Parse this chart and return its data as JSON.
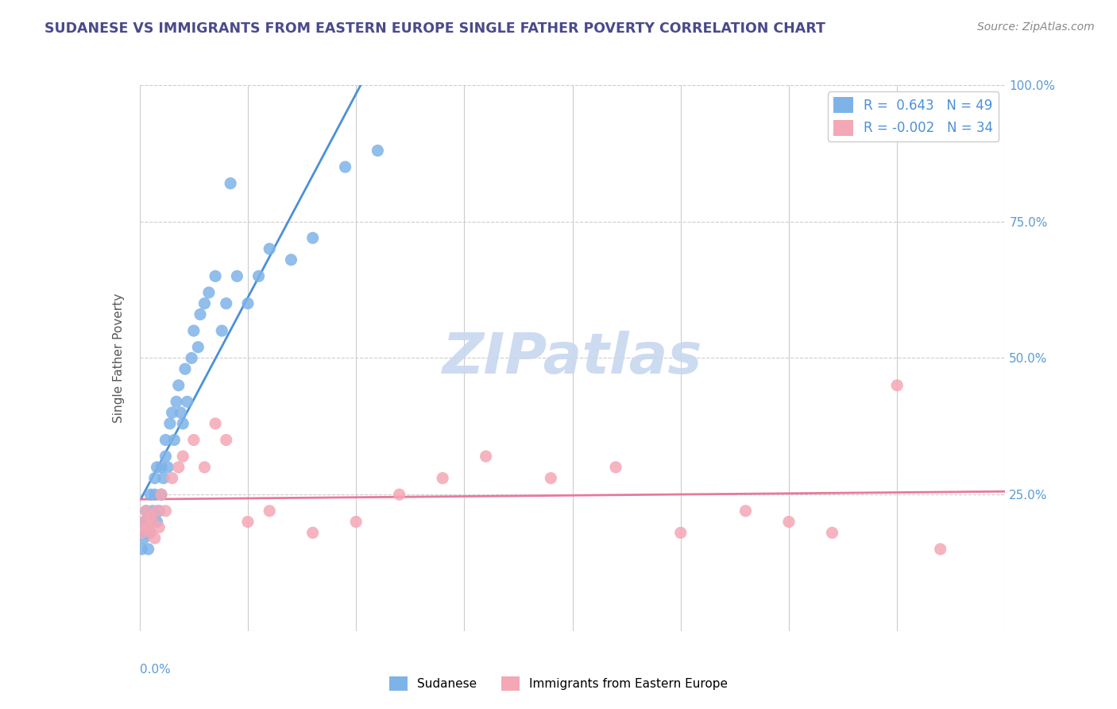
{
  "title": "SUDANESE VS IMMIGRANTS FROM EASTERN EUROPE SINGLE FATHER POVERTY CORRELATION CHART",
  "source": "Source: ZipAtlas.com",
  "ylabel": "Single Father Poverty",
  "legend_labels": [
    "Sudanese",
    "Immigrants from Eastern Europe"
  ],
  "R_blue": 0.643,
  "N_blue": 49,
  "R_pink": -0.002,
  "N_pink": 34,
  "blue_color": "#7EB3E8",
  "pink_color": "#F4A7B5",
  "blue_line_color": "#4A90D9",
  "pink_line_color": "#E87A9A",
  "title_color": "#4A4A8A",
  "watermark_color": "#C8D8F0",
  "background_color": "#FFFFFF",
  "blue_dots_x": [
    0.001,
    0.002,
    0.002,
    0.003,
    0.003,
    0.004,
    0.004,
    0.005,
    0.005,
    0.006,
    0.006,
    0.007,
    0.007,
    0.008,
    0.008,
    0.009,
    0.01,
    0.01,
    0.011,
    0.012,
    0.012,
    0.013,
    0.014,
    0.015,
    0.016,
    0.017,
    0.018,
    0.019,
    0.02,
    0.021,
    0.022,
    0.024,
    0.025,
    0.027,
    0.028,
    0.03,
    0.032,
    0.035,
    0.038,
    0.04,
    0.042,
    0.045,
    0.05,
    0.055,
    0.06,
    0.07,
    0.08,
    0.095,
    0.11
  ],
  "blue_dots_y": [
    0.15,
    0.2,
    0.17,
    0.18,
    0.22,
    0.15,
    0.2,
    0.18,
    0.25,
    0.2,
    0.22,
    0.25,
    0.28,
    0.2,
    0.3,
    0.22,
    0.25,
    0.3,
    0.28,
    0.35,
    0.32,
    0.3,
    0.38,
    0.4,
    0.35,
    0.42,
    0.45,
    0.4,
    0.38,
    0.48,
    0.42,
    0.5,
    0.55,
    0.52,
    0.58,
    0.6,
    0.62,
    0.65,
    0.55,
    0.6,
    0.82,
    0.65,
    0.6,
    0.65,
    0.7,
    0.68,
    0.72,
    0.85,
    0.88
  ],
  "pink_dots_x": [
    0.001,
    0.002,
    0.003,
    0.004,
    0.005,
    0.005,
    0.006,
    0.007,
    0.008,
    0.009,
    0.01,
    0.012,
    0.015,
    0.018,
    0.02,
    0.025,
    0.03,
    0.035,
    0.04,
    0.05,
    0.06,
    0.08,
    0.1,
    0.12,
    0.14,
    0.16,
    0.19,
    0.22,
    0.25,
    0.28,
    0.3,
    0.32,
    0.35,
    0.37
  ],
  "pink_dots_y": [
    0.18,
    0.2,
    0.22,
    0.19,
    0.18,
    0.21,
    0.2,
    0.17,
    0.22,
    0.19,
    0.25,
    0.22,
    0.28,
    0.3,
    0.32,
    0.35,
    0.3,
    0.38,
    0.35,
    0.2,
    0.22,
    0.18,
    0.2,
    0.25,
    0.28,
    0.32,
    0.28,
    0.3,
    0.18,
    0.22,
    0.2,
    0.18,
    0.45,
    0.15
  ],
  "ytick_vals": [
    0.0,
    0.25,
    0.5,
    0.75,
    1.0
  ],
  "ytick_labels": [
    "",
    "25.0%",
    "50.0%",
    "75.0%",
    "100.0%"
  ],
  "xtick_vals": [
    0.0,
    0.05,
    0.1,
    0.15,
    0.2,
    0.25,
    0.3,
    0.35,
    0.4
  ],
  "xlim": [
    0,
    0.4
  ],
  "ylim": [
    0,
    1.0
  ]
}
